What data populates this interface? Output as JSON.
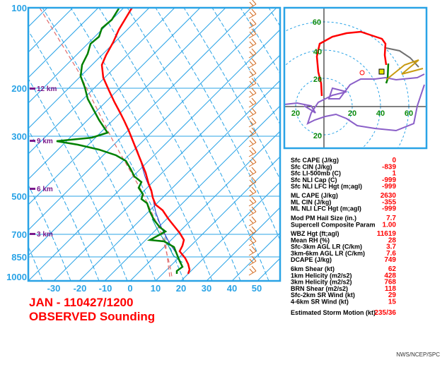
{
  "chart_data": [
    {
      "type": "line",
      "title": "JAN - 110427/1200",
      "subtitle": "OBSERVED Sounding",
      "x_ticks": [
        "-30",
        "-20",
        "-10",
        "0",
        "10",
        "20",
        "30",
        "40",
        "50"
      ],
      "pressure_ticks": [
        "100",
        "200",
        "300",
        "500",
        "700",
        "850",
        "1000"
      ],
      "height_labels": [
        "12 km",
        "9 km",
        "6 km",
        "3 km"
      ],
      "series": [
        {
          "name": "",
          "color": "#ff0000",
          "values": []
        },
        {
          "name": "",
          "color": "#008000",
          "values": []
        }
      ]
    },
    {
      "type": "line",
      "hodograph_ticks": [
        "60",
        "40",
        "20",
        "20",
        "40",
        "60",
        "20"
      ]
    }
  ],
  "params": {
    "group1": [
      {
        "label": "Sfc CAPE (J/kg)",
        "value": "0"
      },
      {
        "label": "Sfc CIN (J/kg)",
        "value": "-839"
      },
      {
        "label": "Sfc LI-500mb (C)",
        "value": "1"
      },
      {
        "label": "Sfc NLI Cap (C)",
        "value": "-999"
      },
      {
        "label": "Sfc NLI LFC Hgt (m;agl)",
        "value": "-999"
      }
    ],
    "group2": [
      {
        "label": "ML CAPE (J/kg)",
        "value": "2630"
      },
      {
        "label": "ML CIN (J/kg)",
        "value": "-355"
      },
      {
        "label": "ML NLI LFC Hgt (m;agl)",
        "value": "-999"
      }
    ],
    "group3": [
      {
        "label": "Mod PM Hail Size (in.)",
        "value": "7.7"
      },
      {
        "label": "Supercell Composite Param",
        "value": "1.00"
      }
    ],
    "group4": [
      {
        "label": "WBZ Hgt (ft;agl)",
        "value": "11619"
      },
      {
        "label": "Mean RH (%)",
        "value": "28"
      },
      {
        "label": "Sfc-3km AGL LR (C/km)",
        "value": "3.7"
      },
      {
        "label": "3km-6km AGL LR (C/km)",
        "value": "7.6"
      },
      {
        "label": "DCAPE (J/kg)",
        "value": "749"
      }
    ],
    "group5": [
      {
        "label": "6km Shear (kt)",
        "value": "62"
      },
      {
        "label": "1km Helicity (m2/s2)",
        "value": "428"
      },
      {
        "label": "3km Helicity (m2/s2)",
        "value": "768"
      },
      {
        "label": "BRN Shear (m2/s2)",
        "value": "118"
      },
      {
        "label": "Sfc-2km SR Wind (kt)",
        "value": "29"
      },
      {
        "label": "4-6km SR Wind (kt)",
        "value": "15"
      }
    ],
    "storm_motion": {
      "label": "Estimated Storm Motion (kt)",
      "value": "235/36"
    }
  },
  "credit": "NWS/NCEP/SPC"
}
